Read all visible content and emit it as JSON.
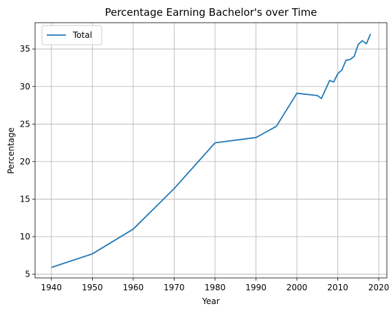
{
  "chart_data": {
    "type": "line",
    "title": "Percentage Earning Bachelor's over Time",
    "xlabel": "Year",
    "ylabel": "Percentage",
    "xlim": [
      1936,
      2022
    ],
    "ylim": [
      4.5,
      38.5
    ],
    "xticks": [
      1940,
      1950,
      1960,
      1970,
      1980,
      1990,
      2000,
      2010,
      2020
    ],
    "yticks": [
      5,
      10,
      15,
      20,
      25,
      30,
      35
    ],
    "grid": true,
    "legend_position": "top-left",
    "series": [
      {
        "name": "Total",
        "color": "#1f77b4",
        "x": [
          1940,
          1950,
          1960,
          1970,
          1980,
          1990,
          1995,
          2000,
          2005,
          2006,
          2007,
          2008,
          2009,
          2010,
          2011,
          2012,
          2013,
          2014,
          2015,
          2016,
          2017,
          2018
        ],
        "y": [
          5.9,
          7.7,
          11.0,
          16.4,
          22.5,
          23.2,
          24.7,
          29.1,
          28.8,
          28.4,
          29.6,
          30.8,
          30.6,
          31.7,
          32.2,
          33.5,
          33.6,
          34.0,
          35.6,
          36.1,
          35.7,
          37.0
        ]
      }
    ]
  }
}
